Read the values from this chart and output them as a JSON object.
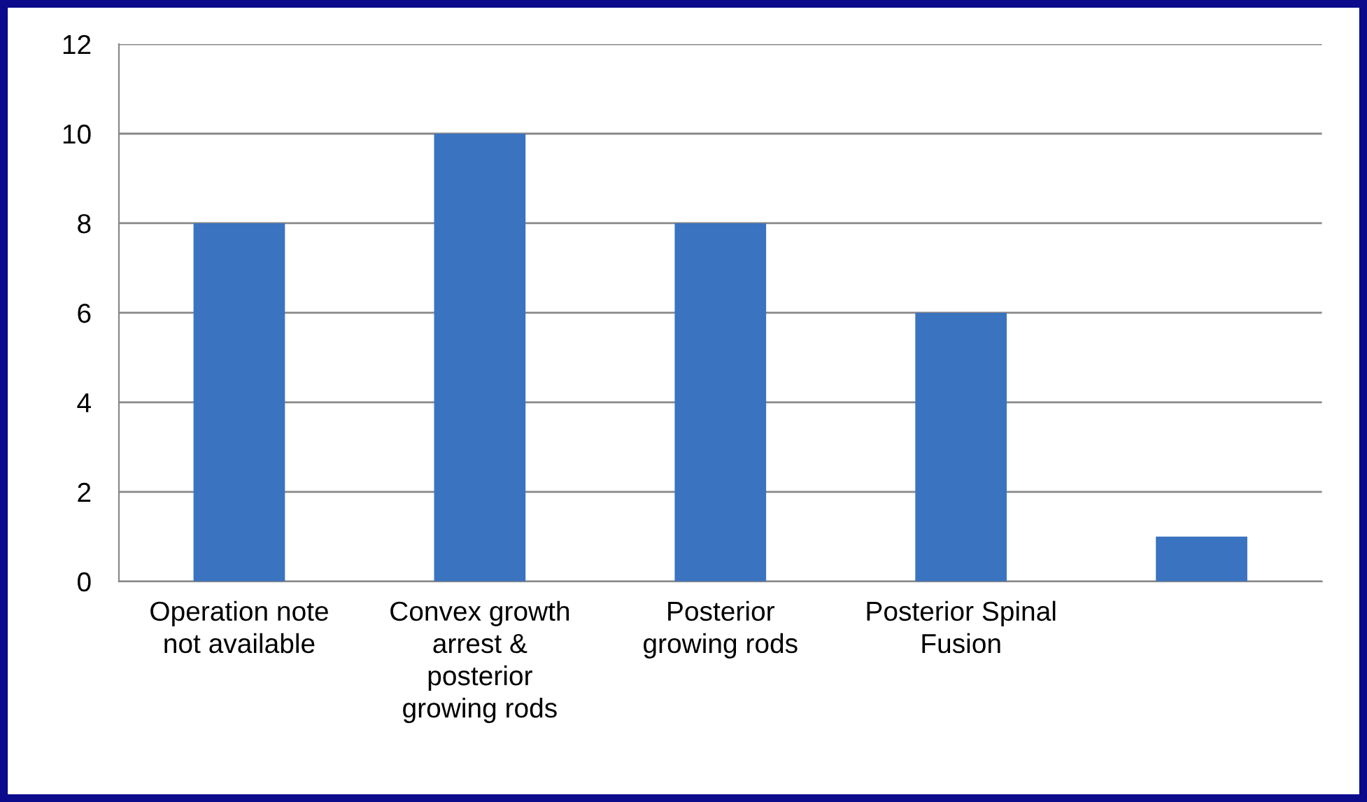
{
  "chart_data": {
    "type": "bar",
    "categories": [
      "Operation note\nnot available",
      "Convex growth\narrest &\nposterior\ngrowing rods",
      "Posterior\ngrowing rods",
      "Posterior Spinal\nFusion",
      null
    ],
    "values": [
      8,
      10,
      8,
      6,
      1
    ],
    "color": "#3a73bf",
    "ylim": [
      0,
      12
    ],
    "yticks": [
      0,
      2,
      4,
      6,
      8,
      10,
      12
    ],
    "grid": "y",
    "legend": false
  }
}
